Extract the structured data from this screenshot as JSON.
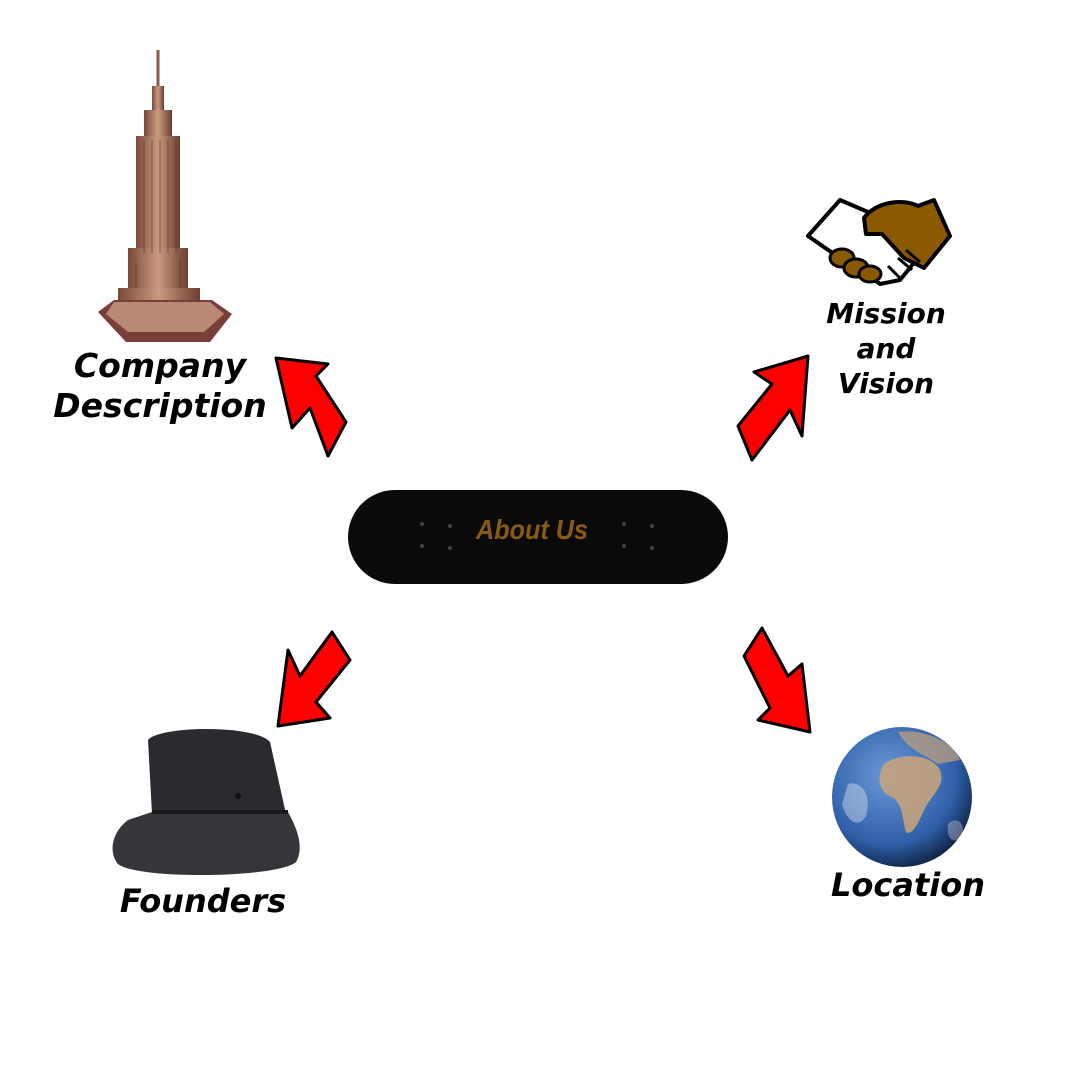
{
  "center": {
    "label": "About Us",
    "label_color": "#8B5A12",
    "board_color": "#0a0a0a"
  },
  "nodes": {
    "company": {
      "label": "Company\nDescription",
      "icon": "skyscraper-icon"
    },
    "mission": {
      "label": "Mission\nand\nVision",
      "icon": "handshake-icon",
      "accent": "#8B5A00"
    },
    "founders": {
      "label": "Founders",
      "icon": "bucket-hat-icon"
    },
    "location": {
      "label": "Location",
      "icon": "globe-icon"
    }
  },
  "arrow_color": "#FF0000"
}
